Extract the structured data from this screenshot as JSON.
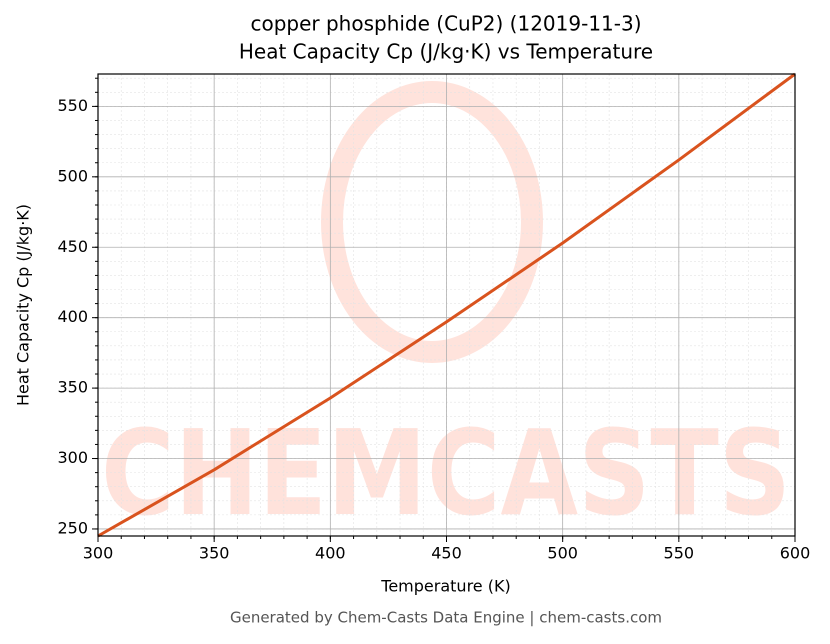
{
  "chart_data": {
    "type": "line",
    "title": "copper phosphide (CuP2) (12019-11-3)",
    "subtitle": "Heat Capacity Cp (J/kg·K) vs Temperature",
    "x_label": "Temperature (K)",
    "y_label": "Heat Capacity Cp (J/kg·K)",
    "footer": "Generated by Chem-Casts Data Engine | chem-casts.com",
    "x": [
      300,
      350,
      400,
      450,
      500,
      550,
      600
    ],
    "series": [
      {
        "name": "Heat Capacity Cp",
        "color": "#d9531e",
        "values": [
          245,
          292,
          343,
          397,
          453,
          512,
          573
        ]
      }
    ],
    "xlim": [
      300,
      600
    ],
    "xticks": [
      300,
      350,
      400,
      450,
      500,
      550,
      600
    ],
    "ylim": [
      245,
      573
    ],
    "yticks": [
      250,
      300,
      350,
      400,
      450,
      500,
      550
    ],
    "grid": true
  }
}
